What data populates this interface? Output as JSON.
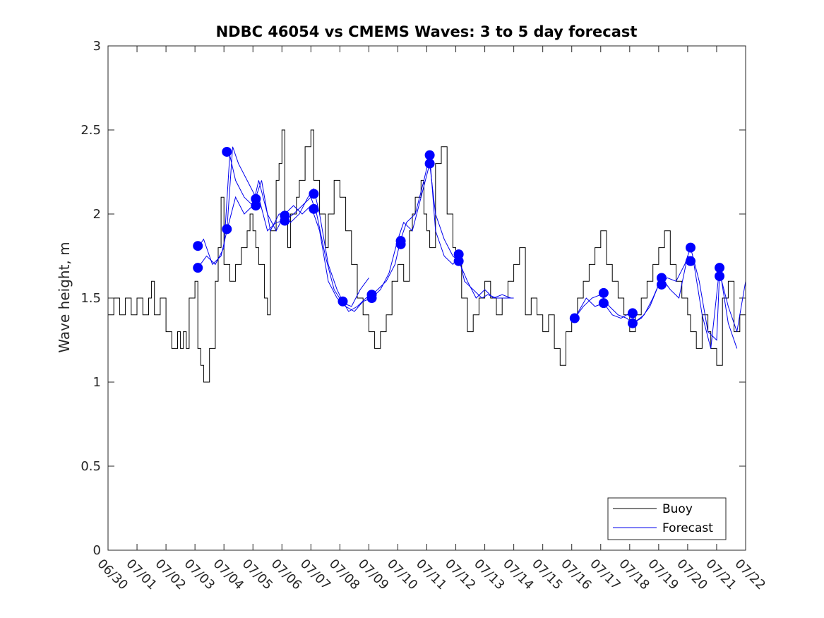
{
  "chart_data": {
    "type": "line",
    "title": "NDBC 46054 vs CMEMS Waves: 3 to 5 day forecast",
    "xlabel": "",
    "ylabel": "Wave height, m",
    "ylim": [
      0,
      3
    ],
    "xlim": [
      "06/30",
      "07/22"
    ],
    "x_tick_labels": [
      "06/30",
      "07/01",
      "07/02",
      "07/03",
      "07/04",
      "07/05",
      "07/06",
      "07/07",
      "07/08",
      "07/09",
      "07/10",
      "07/11",
      "07/12",
      "07/13",
      "07/14",
      "07/15",
      "07/16",
      "07/17",
      "07/18",
      "07/19",
      "07/20",
      "07/21",
      "07/22"
    ],
    "y_ticks": [
      0,
      0.5,
      1,
      1.5,
      2,
      2.5,
      3
    ],
    "y_tick_labels": [
      "0",
      "0.5",
      "1",
      "1.5",
      "2",
      "2.5",
      "3"
    ],
    "grid": false,
    "legend": {
      "position": "bottom-right",
      "entries": [
        "Buoy",
        "Forecast"
      ]
    },
    "colors": {
      "buoy": "#000000",
      "forecast": "#0000ee",
      "marker": "#0000ff"
    },
    "series": [
      {
        "name": "Buoy",
        "x_days": [
          0,
          0.2,
          0.4,
          0.6,
          0.8,
          1,
          1.2,
          1.4,
          1.5,
          1.6,
          1.8,
          2,
          2.2,
          2.4,
          2.5,
          2.6,
          2.7,
          2.8,
          3,
          3.1,
          3.2,
          3.3,
          3.5,
          3.7,
          3.8,
          3.9,
          4,
          4.2,
          4.4,
          4.6,
          4.8,
          4.9,
          5,
          5.1,
          5.2,
          5.4,
          5.5,
          5.6,
          5.8,
          5.9,
          6,
          6.1,
          6.2,
          6.3,
          6.5,
          6.6,
          6.8,
          7,
          7.1,
          7.3,
          7.5,
          7.6,
          7.8,
          8,
          8.2,
          8.4,
          8.6,
          8.8,
          9,
          9.2,
          9.4,
          9.6,
          9.8,
          10,
          10.2,
          10.4,
          10.5,
          10.6,
          10.8,
          10.9,
          11,
          11.1,
          11.3,
          11.5,
          11.7,
          11.9,
          12,
          12.2,
          12.4,
          12.6,
          12.8,
          13,
          13.2,
          13.4,
          13.6,
          13.8,
          14,
          14.2,
          14.4,
          14.6,
          14.8,
          15,
          15.2,
          15.4,
          15.6,
          15.8,
          16,
          16.2,
          16.4,
          16.6,
          16.8,
          17,
          17.2,
          17.4,
          17.6,
          17.8,
          18,
          18.2,
          18.4,
          18.6,
          18.8,
          19,
          19.2,
          19.4,
          19.6,
          19.8,
          20,
          20.1,
          20.3,
          20.5,
          20.7,
          20.8,
          21,
          21.2,
          21.4,
          21.6,
          21.8,
          22
        ],
        "values": [
          1.4,
          1.5,
          1.4,
          1.5,
          1.4,
          1.5,
          1.4,
          1.5,
          1.6,
          1.4,
          1.5,
          1.3,
          1.2,
          1.3,
          1.2,
          1.3,
          1.2,
          1.5,
          1.6,
          1.2,
          1.1,
          1.0,
          1.2,
          1.6,
          1.8,
          2.1,
          1.7,
          1.6,
          1.7,
          1.8,
          1.9,
          2.0,
          1.9,
          1.8,
          1.7,
          1.5,
          1.4,
          1.9,
          2.2,
          2.3,
          2.5,
          2.0,
          1.8,
          2.0,
          2.1,
          2.2,
          2.4,
          2.5,
          2.2,
          2.0,
          1.8,
          2.0,
          2.2,
          2.1,
          1.9,
          1.7,
          1.5,
          1.4,
          1.3,
          1.2,
          1.3,
          1.4,
          1.6,
          1.7,
          1.6,
          1.9,
          2.0,
          2.1,
          2.2,
          2.0,
          1.9,
          1.8,
          2.3,
          2.4,
          2.0,
          1.8,
          1.7,
          1.5,
          1.3,
          1.4,
          1.5,
          1.6,
          1.5,
          1.4,
          1.5,
          1.6,
          1.7,
          1.8,
          1.4,
          1.5,
          1.4,
          1.3,
          1.4,
          1.2,
          1.1,
          1.3,
          1.4,
          1.5,
          1.6,
          1.7,
          1.8,
          1.9,
          1.7,
          1.6,
          1.5,
          1.4,
          1.3,
          1.4,
          1.5,
          1.6,
          1.7,
          1.8,
          1.9,
          1.7,
          1.6,
          1.5,
          1.4,
          1.3,
          1.2,
          1.4,
          1.3,
          1.2,
          1.1,
          1.5,
          1.6,
          1.3,
          1.4,
          1.5
        ],
        "markers": false
      },
      {
        "name": "Forecast",
        "x_days": [
          3.1,
          3.3,
          3.6,
          3.9,
          4.1,
          4.3,
          4.5,
          4.8,
          5.1,
          5.3,
          5.6,
          5.9,
          6.1,
          6.3,
          6.6,
          6.9,
          7.1,
          7.3,
          7.6,
          7.9,
          8.1,
          8.3,
          8.6,
          8.9,
          9.1,
          9.3,
          9.6,
          9.9,
          10.1,
          10.3,
          10.6,
          10.9,
          11.1,
          11.3,
          11.6,
          11.9,
          12.1,
          12.3,
          12.6,
          12.9,
          13.1,
          13.4,
          13.7,
          14.0
        ],
        "values": [
          1.8,
          1.85,
          1.7,
          1.75,
          1.9,
          2.4,
          2.3,
          2.2,
          2.1,
          2.2,
          1.9,
          2.0,
          2.0,
          1.95,
          2.0,
          2.1,
          2.15,
          2.0,
          1.7,
          1.55,
          1.48,
          1.42,
          1.45,
          1.5,
          1.52,
          1.55,
          1.6,
          1.7,
          1.85,
          1.95,
          2.0,
          2.2,
          2.35,
          1.9,
          1.75,
          1.7,
          1.75,
          1.6,
          1.55,
          1.5,
          1.52,
          1.5,
          1.5,
          1.5
        ],
        "markers": false
      },
      {
        "name": "",
        "x_days": [
          3.1,
          3.4,
          3.7,
          4.0,
          4.2,
          4.4,
          4.7,
          5.0,
          5.2,
          5.5,
          5.8,
          6.1,
          6.4,
          6.7,
          7.0,
          7.2,
          7.5,
          7.8,
          8.1,
          8.4,
          8.7,
          9.0
        ],
        "values": [
          1.68,
          1.75,
          1.7,
          1.8,
          2.35,
          2.2,
          2.1,
          2.05,
          2.1,
          1.9,
          1.95,
          1.96,
          2.0,
          2.05,
          2.1,
          2.0,
          1.75,
          1.55,
          1.47,
          1.45,
          1.55,
          1.62
        ],
        "markers": false
      },
      {
        "name": "",
        "x_days": [
          4.1,
          4.4,
          4.7,
          5.0,
          5.2,
          5.5,
          5.8,
          6.1,
          6.4,
          6.7,
          7.0,
          7.3,
          7.6,
          7.9,
          8.2,
          8.5,
          8.8,
          9.1,
          9.4,
          9.7,
          10.0,
          10.2,
          10.5,
          10.8,
          11.1,
          11.3,
          11.6,
          11.9,
          12.1,
          12.4,
          12.7,
          13.0,
          13.3,
          13.6,
          13.9
        ],
        "values": [
          1.9,
          2.1,
          2.0,
          2.05,
          2.2,
          2.0,
          1.9,
          2.0,
          2.05,
          2.0,
          2.05,
          1.9,
          1.6,
          1.5,
          1.45,
          1.42,
          1.48,
          1.5,
          1.55,
          1.65,
          1.85,
          1.95,
          1.9,
          2.1,
          2.3,
          2.0,
          1.85,
          1.75,
          1.72,
          1.6,
          1.5,
          1.55,
          1.5,
          1.52,
          1.5
        ],
        "markers": false
      },
      {
        "name": "",
        "x_days": [
          16.1,
          16.4,
          16.7,
          17.0,
          17.3,
          17.6,
          17.9,
          18.1,
          18.4,
          18.7,
          19.0,
          19.3,
          19.6,
          19.9,
          20.1,
          20.4,
          20.7,
          21.0,
          21.1,
          21.4,
          21.7,
          22.0
        ],
        "values": [
          1.38,
          1.45,
          1.5,
          1.52,
          1.45,
          1.4,
          1.38,
          1.35,
          1.38,
          1.45,
          1.58,
          1.62,
          1.6,
          1.7,
          1.8,
          1.6,
          1.3,
          1.25,
          1.65,
          1.45,
          1.3,
          1.6
        ],
        "markers": false
      },
      {
        "name": "",
        "x_days": [
          16.1,
          16.5,
          16.8,
          17.1,
          17.4,
          17.7,
          18.0,
          18.2,
          18.5,
          18.8,
          19.1,
          19.4,
          19.7,
          20.0,
          20.2,
          20.5,
          20.8,
          21.1,
          21.4,
          21.7
        ],
        "values": [
          1.38,
          1.5,
          1.45,
          1.47,
          1.4,
          1.38,
          1.41,
          1.36,
          1.4,
          1.5,
          1.62,
          1.55,
          1.5,
          1.75,
          1.72,
          1.4,
          1.2,
          1.68,
          1.35,
          1.2
        ],
        "markers": false
      },
      {
        "name": "",
        "x_points": [
          3.1,
          3.1,
          4.1,
          4.1,
          5.1,
          5.1,
          6.1,
          6.1,
          7.1,
          7.1,
          8.1,
          9.1,
          9.1,
          10.1,
          10.1,
          11.1,
          11.1,
          12.1,
          12.1,
          16.1,
          17.1,
          17.1,
          18.1,
          18.1,
          19.1,
          19.1,
          20.1,
          20.1,
          21.1,
          21.1
        ],
        "y_points": [
          1.81,
          1.68,
          2.37,
          1.91,
          2.09,
          2.05,
          1.99,
          1.96,
          2.12,
          2.03,
          1.48,
          1.52,
          1.5,
          1.84,
          1.82,
          2.35,
          2.3,
          1.76,
          1.72,
          1.38,
          1.53,
          1.47,
          1.41,
          1.35,
          1.62,
          1.58,
          1.8,
          1.72,
          1.68,
          1.63
        ],
        "markers": true
      }
    ]
  }
}
